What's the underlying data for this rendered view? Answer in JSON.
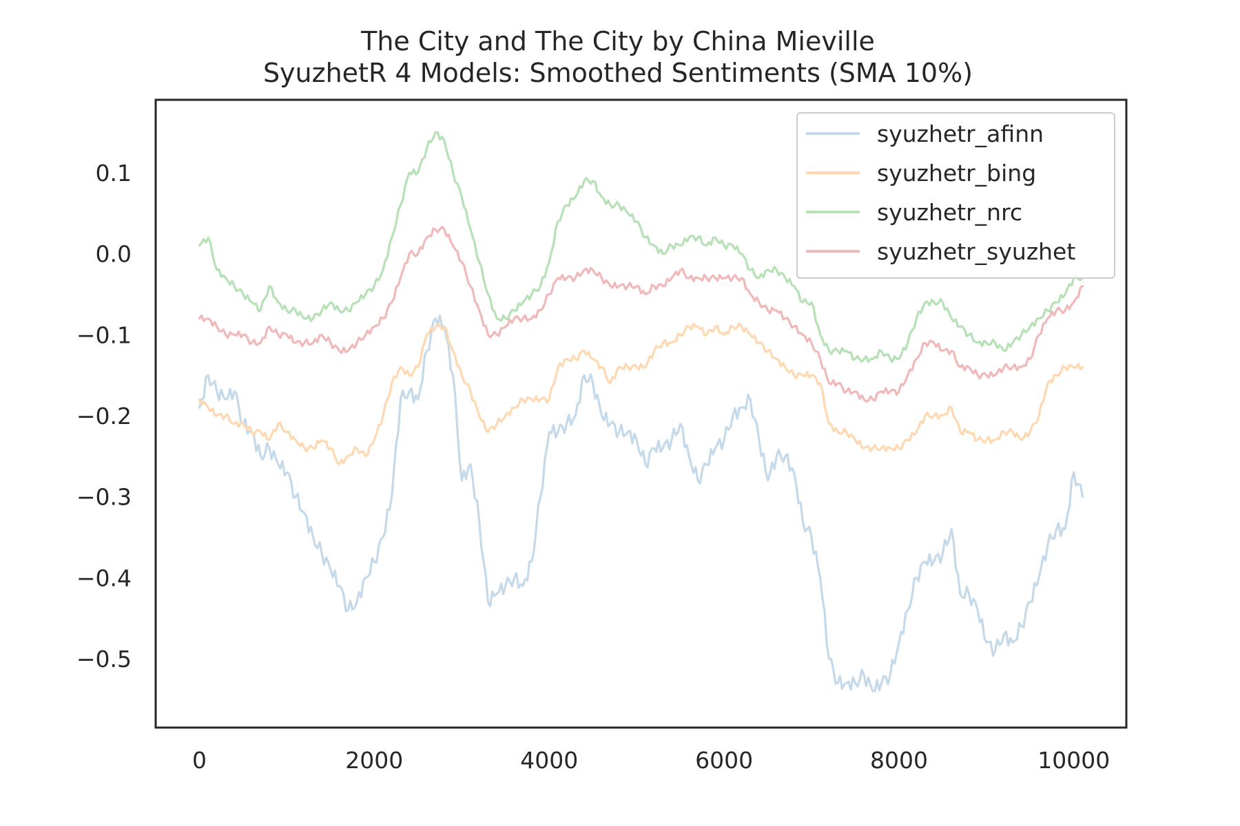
{
  "chart_data": {
    "type": "line",
    "title_line1": "The City and The City by China Mieville",
    "title_line2": "SyuzhetR 4 Models: Smoothed Sentiments (SMA 10%)",
    "xlabel": "",
    "ylabel": "",
    "xlim": [
      -500,
      10600
    ],
    "ylim": [
      -0.585,
      0.19
    ],
    "x_ticks": [
      0,
      2000,
      4000,
      6000,
      8000,
      10000
    ],
    "y_ticks": [
      0.1,
      0.0,
      -0.1,
      -0.2,
      -0.3,
      -0.4,
      -0.5
    ],
    "x_tick_labels": [
      "0",
      "2000",
      "4000",
      "6000",
      "8000",
      "10000"
    ],
    "y_tick_labels": [
      "0.1",
      "0.0",
      "−0.1",
      "−0.2",
      "−0.3",
      "−0.4",
      "−0.5"
    ],
    "grid": false,
    "legend_position": "top-right",
    "x": [
      0,
      100,
      200,
      300,
      400,
      500,
      600,
      700,
      800,
      900,
      1000,
      1100,
      1200,
      1300,
      1400,
      1500,
      1600,
      1700,
      1800,
      1900,
      2000,
      2100,
      2200,
      2300,
      2400,
      2500,
      2600,
      2700,
      2800,
      2900,
      3000,
      3100,
      3200,
      3300,
      3400,
      3500,
      3600,
      3700,
      3800,
      3900,
      4000,
      4100,
      4200,
      4300,
      4400,
      4500,
      4600,
      4700,
      4800,
      4900,
      5000,
      5100,
      5200,
      5300,
      5400,
      5500,
      5600,
      5700,
      5800,
      5900,
      6000,
      6100,
      6200,
      6300,
      6400,
      6500,
      6600,
      6700,
      6800,
      6900,
      7000,
      7100,
      7200,
      7300,
      7400,
      7500,
      7600,
      7700,
      7800,
      7900,
      8000,
      8100,
      8200,
      8300,
      8400,
      8500,
      8600,
      8700,
      8800,
      8900,
      9000,
      9100,
      9200,
      9300,
      9400,
      9500,
      9600,
      9700,
      9800,
      9900,
      10000,
      10100
    ],
    "series": [
      {
        "name": "syuzhetr_afinn",
        "color": "#c4d9ea",
        "values": [
          -0.19,
          -0.15,
          -0.17,
          -0.18,
          -0.17,
          -0.21,
          -0.22,
          -0.25,
          -0.24,
          -0.26,
          -0.27,
          -0.3,
          -0.32,
          -0.35,
          -0.37,
          -0.39,
          -0.41,
          -0.44,
          -0.43,
          -0.4,
          -0.38,
          -0.35,
          -0.3,
          -0.18,
          -0.17,
          -0.18,
          -0.12,
          -0.08,
          -0.09,
          -0.15,
          -0.28,
          -0.26,
          -0.33,
          -0.43,
          -0.42,
          -0.41,
          -0.4,
          -0.41,
          -0.38,
          -0.3,
          -0.22,
          -0.22,
          -0.21,
          -0.2,
          -0.15,
          -0.16,
          -0.2,
          -0.21,
          -0.22,
          -0.22,
          -0.23,
          -0.26,
          -0.24,
          -0.24,
          -0.23,
          -0.21,
          -0.25,
          -0.28,
          -0.26,
          -0.24,
          -0.23,
          -0.2,
          -0.19,
          -0.18,
          -0.23,
          -0.28,
          -0.25,
          -0.25,
          -0.27,
          -0.33,
          -0.35,
          -0.4,
          -0.5,
          -0.53,
          -0.53,
          -0.53,
          -0.52,
          -0.54,
          -0.53,
          -0.52,
          -0.48,
          -0.44,
          -0.4,
          -0.38,
          -0.38,
          -0.37,
          -0.34,
          -0.42,
          -0.42,
          -0.44,
          -0.48,
          -0.49,
          -0.47,
          -0.48,
          -0.46,
          -0.43,
          -0.4,
          -0.36,
          -0.34,
          -0.34,
          -0.27,
          -0.3
        ]
      },
      {
        "name": "syuzhetr_bing",
        "color": "#fed8b1",
        "values": [
          -0.18,
          -0.19,
          -0.2,
          -0.2,
          -0.21,
          -0.21,
          -0.22,
          -0.22,
          -0.23,
          -0.21,
          -0.22,
          -0.23,
          -0.24,
          -0.24,
          -0.23,
          -0.24,
          -0.26,
          -0.25,
          -0.24,
          -0.25,
          -0.23,
          -0.2,
          -0.16,
          -0.14,
          -0.15,
          -0.14,
          -0.1,
          -0.09,
          -0.09,
          -0.12,
          -0.15,
          -0.17,
          -0.2,
          -0.22,
          -0.21,
          -0.2,
          -0.19,
          -0.18,
          -0.18,
          -0.18,
          -0.18,
          -0.14,
          -0.13,
          -0.13,
          -0.12,
          -0.13,
          -0.14,
          -0.16,
          -0.14,
          -0.14,
          -0.14,
          -0.14,
          -0.12,
          -0.11,
          -0.11,
          -0.1,
          -0.09,
          -0.09,
          -0.1,
          -0.09,
          -0.1,
          -0.09,
          -0.09,
          -0.1,
          -0.11,
          -0.12,
          -0.13,
          -0.14,
          -0.15,
          -0.15,
          -0.15,
          -0.16,
          -0.21,
          -0.22,
          -0.22,
          -0.23,
          -0.24,
          -0.24,
          -0.24,
          -0.24,
          -0.24,
          -0.23,
          -0.22,
          -0.2,
          -0.2,
          -0.2,
          -0.19,
          -0.22,
          -0.22,
          -0.23,
          -0.23,
          -0.23,
          -0.22,
          -0.22,
          -0.23,
          -0.22,
          -0.2,
          -0.16,
          -0.15,
          -0.14,
          -0.14,
          -0.14
        ]
      },
      {
        "name": "syuzhetr_nrc",
        "color": "#b6e0b6",
        "values": [
          0.01,
          0.02,
          -0.02,
          -0.03,
          -0.04,
          -0.05,
          -0.06,
          -0.07,
          -0.04,
          -0.06,
          -0.07,
          -0.07,
          -0.08,
          -0.08,
          -0.07,
          -0.06,
          -0.07,
          -0.07,
          -0.06,
          -0.05,
          -0.04,
          -0.02,
          0.02,
          0.06,
          0.1,
          0.1,
          0.13,
          0.15,
          0.14,
          0.1,
          0.07,
          0.03,
          -0.01,
          -0.05,
          -0.08,
          -0.08,
          -0.07,
          -0.06,
          -0.05,
          -0.04,
          -0.01,
          0.04,
          0.06,
          0.07,
          0.09,
          0.09,
          0.07,
          0.06,
          0.06,
          0.05,
          0.04,
          0.02,
          0.01,
          0.0,
          0.01,
          0.01,
          0.02,
          0.02,
          0.01,
          0.02,
          0.01,
          0.01,
          0.0,
          -0.02,
          -0.03,
          -0.02,
          -0.02,
          -0.03,
          -0.04,
          -0.06,
          -0.06,
          -0.1,
          -0.12,
          -0.12,
          -0.12,
          -0.13,
          -0.13,
          -0.13,
          -0.12,
          -0.13,
          -0.13,
          -0.11,
          -0.08,
          -0.06,
          -0.06,
          -0.06,
          -0.08,
          -0.09,
          -0.1,
          -0.11,
          -0.11,
          -0.11,
          -0.12,
          -0.11,
          -0.1,
          -0.09,
          -0.08,
          -0.07,
          -0.06,
          -0.05,
          -0.03,
          -0.03
        ]
      },
      {
        "name": "syuzhetr_syuzhet",
        "color": "#f0b8b8",
        "values": [
          -0.08,
          -0.08,
          -0.09,
          -0.1,
          -0.1,
          -0.1,
          -0.11,
          -0.11,
          -0.09,
          -0.1,
          -0.1,
          -0.11,
          -0.11,
          -0.11,
          -0.1,
          -0.11,
          -0.12,
          -0.12,
          -0.11,
          -0.1,
          -0.09,
          -0.08,
          -0.06,
          -0.03,
          0.0,
          0.0,
          0.02,
          0.03,
          0.03,
          0.01,
          -0.01,
          -0.04,
          -0.07,
          -0.1,
          -0.1,
          -0.09,
          -0.08,
          -0.08,
          -0.08,
          -0.07,
          -0.05,
          -0.03,
          -0.03,
          -0.03,
          -0.02,
          -0.02,
          -0.03,
          -0.04,
          -0.04,
          -0.04,
          -0.04,
          -0.05,
          -0.04,
          -0.04,
          -0.03,
          -0.02,
          -0.03,
          -0.03,
          -0.03,
          -0.03,
          -0.03,
          -0.03,
          -0.03,
          -0.05,
          -0.06,
          -0.07,
          -0.07,
          -0.08,
          -0.09,
          -0.1,
          -0.11,
          -0.13,
          -0.16,
          -0.16,
          -0.17,
          -0.17,
          -0.18,
          -0.18,
          -0.17,
          -0.17,
          -0.17,
          -0.15,
          -0.13,
          -0.11,
          -0.11,
          -0.12,
          -0.12,
          -0.14,
          -0.14,
          -0.15,
          -0.15,
          -0.15,
          -0.14,
          -0.14,
          -0.14,
          -0.13,
          -0.1,
          -0.08,
          -0.07,
          -0.07,
          -0.06,
          -0.04
        ]
      }
    ]
  }
}
